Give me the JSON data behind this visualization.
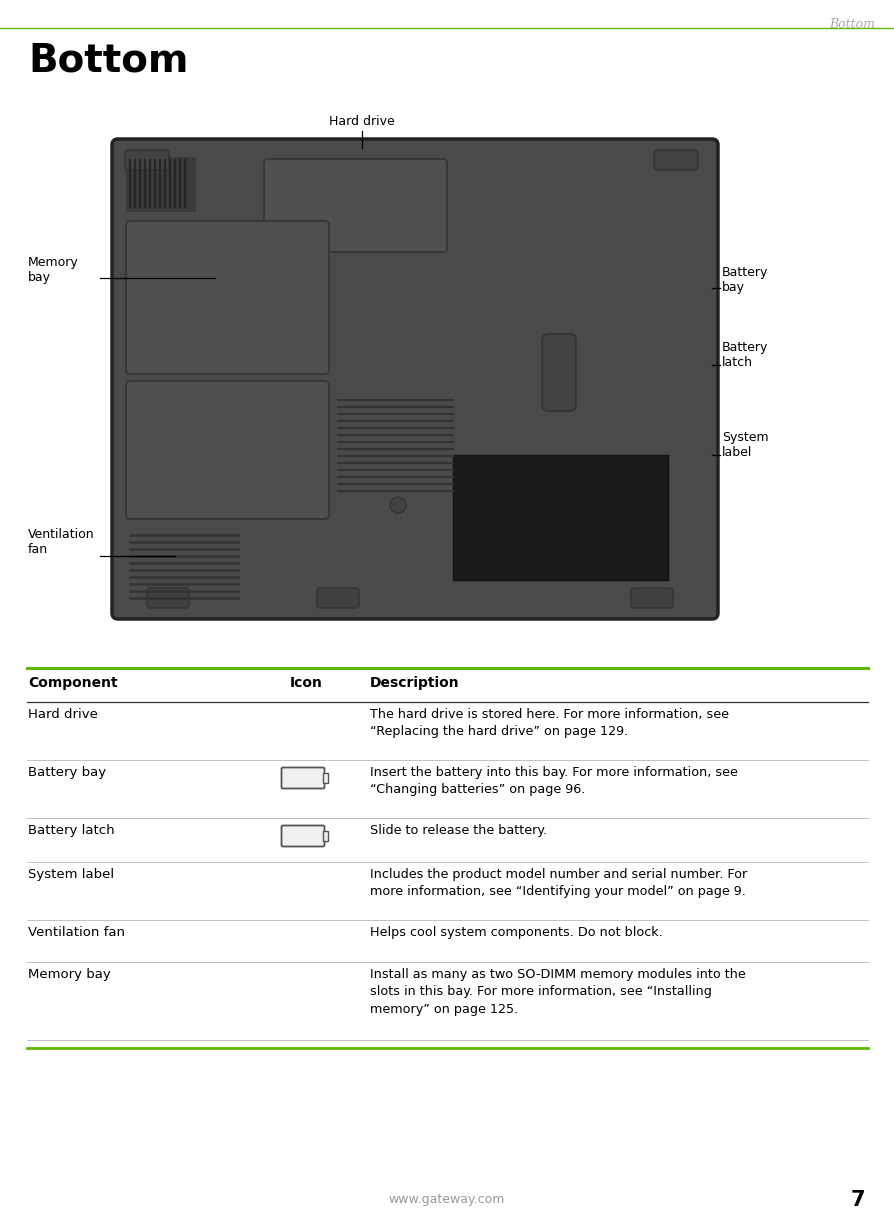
{
  "page_title_top_right": "Bottom",
  "page_title_main": "Bottom",
  "page_number": "7",
  "footer_url": "www.gateway.com",
  "bg_color": "#ffffff",
  "green_line_color": "#5cb800",
  "font_color": "#000000",
  "header_italic_color": "#aaaaaa",
  "laptop_bg": "#4a4a4a",
  "laptop_border": "#222222",
  "table_rows": [
    {
      "component": "Hard drive",
      "icon": "",
      "description": "The hard drive is stored here. For more information, see\n“Replacing the hard drive” on page 129."
    },
    {
      "component": "Battery bay",
      "icon": "battery",
      "description": "Insert the battery into this bay. For more information, see\n“Changing batteries” on page 96."
    },
    {
      "component": "Battery latch",
      "icon": "battery",
      "description": "Slide to release the battery."
    },
    {
      "component": "System label",
      "icon": "",
      "description": "Includes the product model number and serial number. For\nmore information, see “Identifying your model” on page 9."
    },
    {
      "component": "Ventilation fan",
      "icon": "",
      "description": "Helps cool system components. Do not block."
    },
    {
      "component": "Memory bay",
      "icon": "",
      "description": "Install as many as two SO-DIMM memory modules into the\nslots in this bay. For more information, see “Installing\nmemory” on page 125."
    }
  ]
}
